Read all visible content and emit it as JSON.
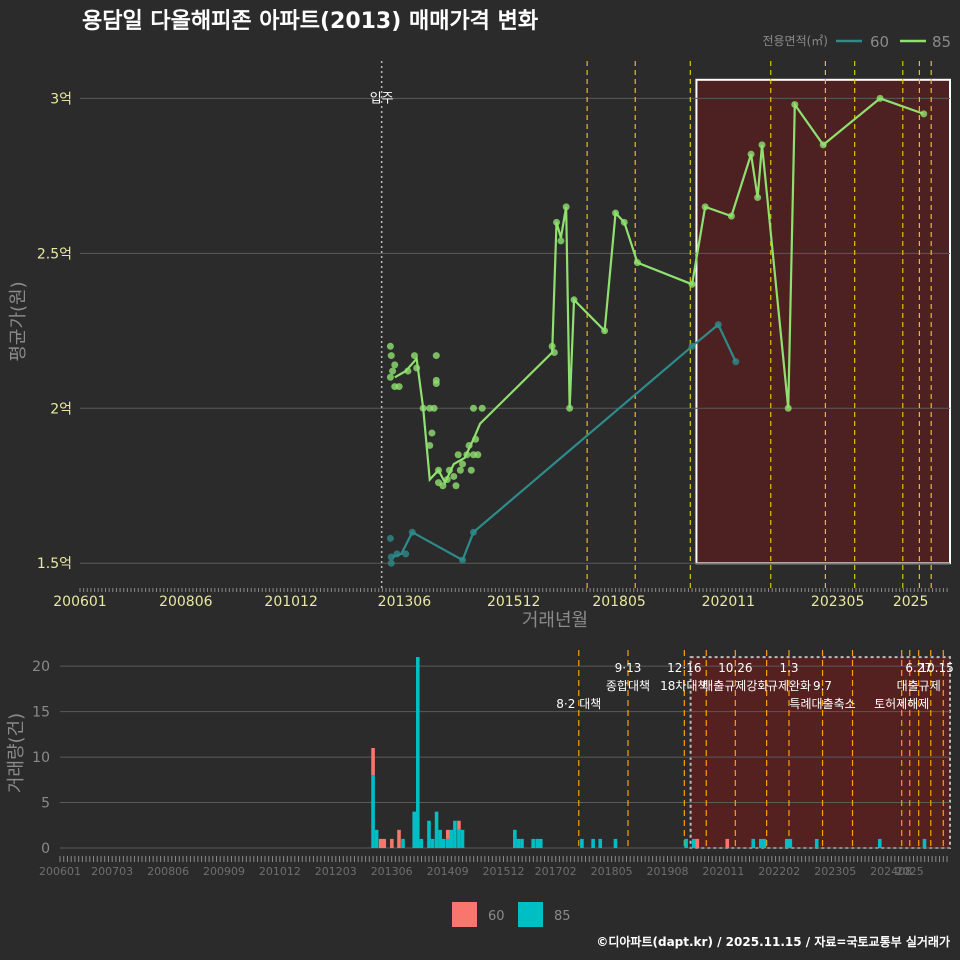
{
  "title": "용담일 다올해피존 아파트(2013) 매매가격 변화",
  "footer": "©디아파트(dapt.kr) / 2025.11.15 / 자료=국토교통부 실거래가",
  "colors": {
    "background": "#2b2b2b",
    "grid": "#5a5a5a",
    "series60_line": "#2e8b8b",
    "series85_line": "#90e070",
    "bar60": "#f8766d",
    "bar85": "#00bfc4",
    "policy_line": "#e6c200",
    "policy_line_bottom": "#ff9f00",
    "highlight_fill": "#5a1f1f",
    "text": "#e8e8e8",
    "axis_tick_text": "#e8e8a0",
    "muted": "#8a8a8a"
  },
  "chart_data": [
    {
      "type": "line",
      "title": "용담일 다올해피존 아파트(2013) 매매가격 변화",
      "xlabel": "거래년월",
      "ylabel": "평균가(원)",
      "xlim": [
        2006.0,
        2025.9
      ],
      "ylim": [
        1.42,
        3.14
      ],
      "yticks": [
        1.5,
        2.0,
        2.5,
        3.0
      ],
      "ytick_labels": [
        "1.5억",
        "2억",
        "2.5억",
        "3억"
      ],
      "xticks": [
        2006.0,
        2008.42,
        2010.83,
        2013.42,
        2015.92,
        2018.33,
        2020.83,
        2023.33,
        2025.0
      ],
      "xtick_labels": [
        "200601",
        "200806",
        "201012",
        "201306",
        "201512",
        "201805",
        "202011",
        "202305",
        "2025"
      ],
      "legend_title": "전용면적(㎡)",
      "legend": [
        "60",
        "85"
      ],
      "movein": {
        "x": 2012.9,
        "label": "입주"
      },
      "policy_lines": [
        2017.6,
        2018.7,
        2019.96,
        2021.8,
        2023.05,
        2023.72,
        2024.82,
        2025.2,
        2025.47
      ],
      "highlight": {
        "x0": 2020.1,
        "x1": 2025.9,
        "y0": 1.5,
        "y1": 3.06
      },
      "series": [
        {
          "name": "60",
          "line": [
            [
              2013.15,
              1.52
            ],
            [
              2013.35,
              1.53
            ],
            [
              2013.6,
              1.6
            ],
            [
              2014.75,
              1.51
            ],
            [
              2015.0,
              1.6
            ],
            [
              2020.0,
              2.2
            ],
            [
              2020.6,
              2.27
            ],
            [
              2021.0,
              2.15
            ]
          ],
          "points": [
            [
              2013.1,
              1.58
            ],
            [
              2013.12,
              1.52
            ],
            [
              2013.12,
              1.5
            ],
            [
              2013.25,
              1.53
            ],
            [
              2013.45,
              1.53
            ],
            [
              2013.6,
              1.6
            ],
            [
              2014.75,
              1.51
            ],
            [
              2015.0,
              1.6
            ],
            [
              2020.0,
              2.2
            ],
            [
              2020.6,
              2.27
            ],
            [
              2021.0,
              2.15
            ]
          ]
        },
        {
          "name": "85",
          "line": [
            [
              2013.2,
              2.1
            ],
            [
              2013.45,
              2.12
            ],
            [
              2013.7,
              2.16
            ],
            [
              2013.85,
              2.0
            ],
            [
              2014.0,
              1.77
            ],
            [
              2014.2,
              1.8
            ],
            [
              2014.35,
              1.76
            ],
            [
              2014.55,
              1.82
            ],
            [
              2014.8,
              1.84
            ],
            [
              2015.0,
              1.9
            ],
            [
              2015.15,
              1.95
            ],
            [
              2016.8,
              2.18
            ],
            [
              2016.9,
              2.6
            ],
            [
              2017.0,
              2.55
            ],
            [
              2017.12,
              2.65
            ],
            [
              2017.2,
              2.0
            ],
            [
              2017.3,
              2.35
            ],
            [
              2018.0,
              2.25
            ],
            [
              2018.25,
              2.63
            ],
            [
              2018.45,
              2.6
            ],
            [
              2018.75,
              2.47
            ],
            [
              2020.0,
              2.4
            ],
            [
              2020.3,
              2.65
            ],
            [
              2020.9,
              2.62
            ],
            [
              2021.35,
              2.82
            ],
            [
              2021.5,
              2.68
            ],
            [
              2021.6,
              2.85
            ],
            [
              2022.2,
              2.0
            ],
            [
              2022.35,
              2.98
            ],
            [
              2023.0,
              2.85
            ],
            [
              2024.3,
              3.0
            ],
            [
              2025.3,
              2.95
            ]
          ],
          "points": [
            [
              2013.1,
              2.2
            ],
            [
              2013.12,
              2.17
            ],
            [
              2013.15,
              2.12
            ],
            [
              2013.1,
              2.1
            ],
            [
              2013.2,
              2.14
            ],
            [
              2013.2,
              2.07
            ],
            [
              2013.3,
              2.07
            ],
            [
              2013.5,
              2.12
            ],
            [
              2013.65,
              2.17
            ],
            [
              2013.7,
              2.13
            ],
            [
              2013.85,
              2.0
            ],
            [
              2014.0,
              2.0
            ],
            [
              2014.1,
              2.0
            ],
            [
              2014.0,
              1.88
            ],
            [
              2014.05,
              1.92
            ],
            [
              2014.15,
              2.17
            ],
            [
              2014.15,
              2.09
            ],
            [
              2014.15,
              2.08
            ],
            [
              2014.2,
              1.8
            ],
            [
              2014.2,
              1.76
            ],
            [
              2014.3,
              1.75
            ],
            [
              2014.4,
              1.77
            ],
            [
              2014.45,
              1.8
            ],
            [
              2014.55,
              1.78
            ],
            [
              2014.6,
              1.75
            ],
            [
              2014.65,
              1.85
            ],
            [
              2014.7,
              1.8
            ],
            [
              2014.75,
              1.82
            ],
            [
              2014.85,
              1.85
            ],
            [
              2014.9,
              1.88
            ],
            [
              2014.95,
              1.8
            ],
            [
              2015.0,
              1.85
            ],
            [
              2015.0,
              2.0
            ],
            [
              2015.05,
              1.9
            ],
            [
              2015.1,
              1.85
            ],
            [
              2015.2,
              2.0
            ],
            [
              2016.8,
              2.2
            ],
            [
              2016.85,
              2.18
            ],
            [
              2016.9,
              2.6
            ],
            [
              2017.0,
              2.54
            ],
            [
              2017.12,
              2.65
            ],
            [
              2017.2,
              2.0
            ],
            [
              2017.3,
              2.35
            ],
            [
              2018.0,
              2.25
            ],
            [
              2018.25,
              2.63
            ],
            [
              2018.45,
              2.6
            ],
            [
              2018.75,
              2.47
            ],
            [
              2020.0,
              2.4
            ],
            [
              2020.3,
              2.65
            ],
            [
              2020.9,
              2.62
            ],
            [
              2021.35,
              2.82
            ],
            [
              2021.5,
              2.68
            ],
            [
              2021.6,
              2.85
            ],
            [
              2022.2,
              2.0
            ],
            [
              2022.35,
              2.98
            ],
            [
              2023.0,
              2.85
            ],
            [
              2024.3,
              3.0
            ],
            [
              2025.3,
              2.95
            ]
          ]
        }
      ]
    },
    {
      "type": "bar",
      "xlabel": "",
      "ylabel": "거래량(건)",
      "ylim": [
        0,
        22
      ],
      "yticks": [
        0,
        5,
        10,
        15,
        20
      ],
      "ytick_labels": [
        "0",
        "5",
        "10",
        "15",
        "20"
      ],
      "xtick_labels": [
        "200601",
        "200703",
        "200806",
        "200909",
        "201012",
        "201203",
        "201306",
        "201409",
        "201512",
        "201702",
        "201805",
        "201908",
        "202011",
        "202202",
        "202305",
        "202408",
        "2025"
      ],
      "legend": [
        "60",
        "85"
      ],
      "highlight": {
        "x0": 2020.1,
        "x1": 2025.9,
        "y0": 0,
        "y1": 21
      },
      "policy_lines": [
        2017.6,
        2018.7,
        2019.96,
        2020.45,
        2021.1,
        2021.8,
        2022.3,
        2023.05,
        2023.72,
        2024.82,
        2025.0,
        2025.2,
        2025.47,
        2025.75
      ],
      "policy_labels": [
        {
          "x": 2017.6,
          "level": 2,
          "text": "8·2 대책"
        },
        {
          "x": 2018.7,
          "level": 0,
          "text": "9·13"
        },
        {
          "x": 2018.7,
          "level": 1,
          "text": "종합대책"
        },
        {
          "x": 2019.96,
          "level": 0,
          "text": "12·16"
        },
        {
          "x": 2019.96,
          "level": 1,
          "text": "18차대책"
        },
        {
          "x": 2021.1,
          "level": 0,
          "text": "10.26"
        },
        {
          "x": 2021.1,
          "level": 1,
          "text": "대출규제강화"
        },
        {
          "x": 2022.3,
          "level": 0,
          "text": "1.3"
        },
        {
          "x": 2022.3,
          "level": 1,
          "text": "규제완화"
        },
        {
          "x": 2023.05,
          "level": 1,
          "text": "9.7"
        },
        {
          "x": 2023.05,
          "level": 2,
          "text": "특례대출축소"
        },
        {
          "x": 2024.82,
          "level": 2,
          "text": "토허제해제"
        },
        {
          "x": 2025.2,
          "level": 0,
          "text": "6.27"
        },
        {
          "x": 2025.2,
          "level": 1,
          "text": "대출규제"
        },
        {
          "x": 2025.6,
          "level": 0,
          "text": "10.15"
        }
      ],
      "bars": [
        {
          "x": 2013.0,
          "v60": 3,
          "v85": 8
        },
        {
          "x": 2013.08,
          "v60": 0,
          "v85": 2
        },
        {
          "x": 2013.17,
          "v60": 1,
          "v85": 0
        },
        {
          "x": 2013.25,
          "v60": 1,
          "v85": 0
        },
        {
          "x": 2013.42,
          "v60": 1,
          "v85": 0
        },
        {
          "x": 2013.58,
          "v60": 2,
          "v85": 0
        },
        {
          "x": 2013.67,
          "v60": 0,
          "v85": 1
        },
        {
          "x": 2013.92,
          "v60": 0,
          "v85": 4
        },
        {
          "x": 2014.0,
          "v60": 0,
          "v85": 21
        },
        {
          "x": 2014.08,
          "v60": 0,
          "v85": 1
        },
        {
          "x": 2014.25,
          "v60": 0,
          "v85": 3
        },
        {
          "x": 2014.33,
          "v60": 0,
          "v85": 1
        },
        {
          "x": 2014.42,
          "v60": 0,
          "v85": 4
        },
        {
          "x": 2014.5,
          "v60": 0,
          "v85": 2
        },
        {
          "x": 2014.58,
          "v60": 0,
          "v85": 1
        },
        {
          "x": 2014.67,
          "v60": 1,
          "v85": 1
        },
        {
          "x": 2014.75,
          "v60": 0,
          "v85": 2
        },
        {
          "x": 2014.83,
          "v60": 0,
          "v85": 3
        },
        {
          "x": 2014.92,
          "v60": 1,
          "v85": 2
        },
        {
          "x": 2015.0,
          "v60": 0,
          "v85": 2
        },
        {
          "x": 2016.17,
          "v60": 0,
          "v85": 2
        },
        {
          "x": 2016.25,
          "v60": 0,
          "v85": 1
        },
        {
          "x": 2016.33,
          "v60": 0,
          "v85": 1
        },
        {
          "x": 2016.58,
          "v60": 0,
          "v85": 1
        },
        {
          "x": 2016.67,
          "v60": 0,
          "v85": 1
        },
        {
          "x": 2016.75,
          "v60": 0,
          "v85": 1
        },
        {
          "x": 2017.67,
          "v60": 0,
          "v85": 1
        },
        {
          "x": 2017.92,
          "v60": 0,
          "v85": 1
        },
        {
          "x": 2018.08,
          "v60": 0,
          "v85": 1
        },
        {
          "x": 2018.42,
          "v60": 0,
          "v85": 1
        },
        {
          "x": 2020.0,
          "v60": 0,
          "v85": 1
        },
        {
          "x": 2020.17,
          "v60": 0,
          "v85": 1
        },
        {
          "x": 2020.25,
          "v60": 1,
          "v85": 0
        },
        {
          "x": 2020.92,
          "v60": 1,
          "v85": 0
        },
        {
          "x": 2021.5,
          "v60": 0,
          "v85": 1
        },
        {
          "x": 2021.67,
          "v60": 0,
          "v85": 1
        },
        {
          "x": 2021.75,
          "v60": 0,
          "v85": 1
        },
        {
          "x": 2022.25,
          "v60": 0,
          "v85": 1
        },
        {
          "x": 2022.33,
          "v60": 0,
          "v85": 1
        },
        {
          "x": 2022.92,
          "v60": 0,
          "v85": 1
        },
        {
          "x": 2024.33,
          "v60": 0,
          "v85": 1
        },
        {
          "x": 2025.33,
          "v60": 0,
          "v85": 1
        }
      ]
    }
  ]
}
